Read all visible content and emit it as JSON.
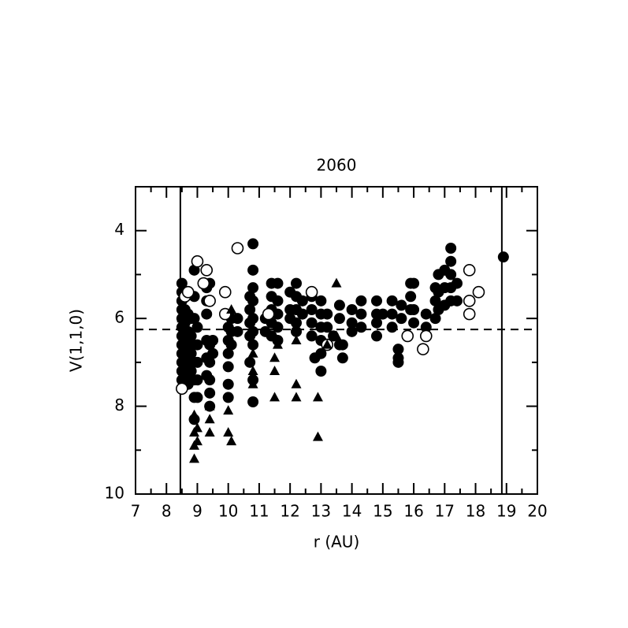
{
  "chart_data": {
    "type": "scatter",
    "title": "2060",
    "x_label": "r (AU)",
    "y_label": "V(1,1,0)",
    "xlim": [
      7,
      20
    ],
    "xticks": [
      7,
      8,
      9,
      10,
      11,
      12,
      13,
      14,
      15,
      16,
      17,
      18,
      19,
      20
    ],
    "xminor": [
      7.5,
      8.5,
      9.5,
      10.5,
      11.5,
      12.5,
      13.5,
      14.5,
      15.5,
      16.5,
      17.5,
      18.5,
      19.5
    ],
    "ylim": [
      10,
      3
    ],
    "yticks": [
      4,
      6,
      8,
      10
    ],
    "yminor": [
      3,
      5,
      7,
      9
    ],
    "vlines": [
      8.45,
      18.85
    ],
    "hline": 6.25,
    "series": [
      {
        "marker": "filled-circle",
        "color": "#000000",
        "x": [
          8.5,
          8.5,
          8.5,
          8.5,
          8.5,
          8.5,
          8.5,
          8.5,
          8.5,
          8.5,
          8.5,
          8.5,
          8.6,
          8.6,
          8.6,
          8.6,
          8.6,
          8.7,
          8.7,
          8.7,
          8.7,
          8.7,
          8.8,
          8.8,
          8.8,
          8.8,
          8.9,
          8.9,
          8.9,
          8.9,
          8.9,
          8.9,
          8.9,
          8.9,
          9.0,
          9.0,
          9.0,
          9.0,
          9.0,
          9.3,
          9.3,
          9.3,
          9.3,
          9.3,
          9.3,
          9.4,
          9.4,
          9.4,
          9.4,
          9.4,
          9.4,
          9.5,
          9.5,
          10.0,
          10.0,
          10.0,
          10.0,
          10.0,
          10.0,
          10.1,
          10.1,
          10.1,
          10.3,
          10.3,
          10.7,
          10.7,
          10.7,
          10.7,
          10.7,
          10.8,
          10.8,
          10.8,
          10.8,
          10.8,
          10.8,
          10.8,
          10.8,
          10.8,
          11.2,
          11.2,
          11.4,
          11.4,
          11.4,
          11.4,
          11.4,
          11.6,
          11.6,
          11.6,
          11.6,
          11.6,
          12.0,
          12.0,
          12.0,
          12.2,
          12.2,
          12.2,
          12.2,
          12.2,
          12.4,
          12.4,
          12.7,
          12.7,
          12.7,
          12.7,
          12.8,
          13.0,
          13.0,
          13.0,
          13.0,
          13.0,
          13.0,
          13.2,
          13.2,
          13.2,
          13.4,
          13.6,
          13.6,
          13.6,
          13.7,
          13.7,
          14.0,
          14.0,
          14.0,
          14.3,
          14.3,
          14.3,
          14.8,
          14.8,
          14.8,
          14.8,
          15.0,
          15.3,
          15.3,
          15.3,
          15.5,
          15.5,
          15.5,
          15.6,
          15.6,
          15.9,
          15.9,
          15.9,
          16.0,
          16.0,
          16.0,
          16.4,
          16.4,
          16.7,
          16.7,
          16.7,
          16.8,
          16.8,
          16.8,
          17.0,
          17.0,
          17.0,
          17.2,
          17.2,
          17.2,
          17.2,
          17.2,
          17.4,
          17.4,
          18.9
        ],
        "values": [
          5.2,
          5.4,
          5.6,
          5.8,
          6.0,
          6.2,
          6.4,
          6.6,
          6.8,
          7.0,
          7.2,
          7.4,
          5.8,
          6.1,
          6.5,
          6.9,
          7.3,
          5.9,
          6.3,
          6.7,
          7.1,
          7.5,
          6.0,
          6.4,
          6.8,
          7.2,
          4.9,
          5.5,
          6.0,
          6.6,
          7.0,
          7.4,
          7.8,
          8.3,
          6.2,
          6.6,
          7.0,
          7.4,
          7.8,
          5.3,
          5.6,
          5.9,
          6.5,
          6.9,
          7.3,
          5.2,
          6.6,
          7.0,
          7.4,
          7.7,
          8.0,
          6.5,
          6.8,
          6.2,
          6.5,
          6.8,
          7.1,
          7.5,
          7.8,
          6.0,
          6.3,
          6.6,
          6.0,
          6.3,
          5.5,
          5.8,
          6.1,
          6.4,
          7.0,
          4.3,
          4.9,
          5.3,
          5.6,
          6.0,
          6.3,
          6.6,
          7.4,
          7.9,
          6.0,
          6.3,
          5.2,
          5.5,
          5.8,
          6.1,
          6.4,
          5.2,
          5.6,
          5.9,
          6.2,
          6.5,
          5.4,
          5.8,
          6.0,
          5.2,
          5.5,
          5.8,
          6.1,
          6.3,
          5.6,
          5.9,
          5.5,
          5.8,
          6.1,
          6.4,
          6.9,
          5.6,
          5.9,
          6.2,
          6.5,
          6.8,
          7.2,
          5.9,
          6.2,
          6.6,
          6.4,
          5.7,
          6.0,
          6.6,
          6.9,
          6.6,
          5.8,
          6.1,
          6.3,
          5.6,
          5.9,
          6.2,
          5.6,
          5.9,
          6.1,
          6.4,
          5.9,
          5.6,
          5.9,
          6.2,
          6.7,
          6.9,
          7.0,
          5.7,
          6.0,
          5.2,
          5.5,
          5.8,
          5.2,
          5.8,
          6.1,
          5.9,
          6.2,
          5.3,
          5.6,
          6.0,
          5.0,
          5.4,
          5.8,
          4.9,
          5.3,
          5.7,
          4.4,
          4.7,
          5.0,
          5.3,
          5.6,
          5.2,
          5.6,
          4.6
        ]
      },
      {
        "marker": "open-circle",
        "color": "#000000",
        "x": [
          8.5,
          8.6,
          8.7,
          9.0,
          9.3,
          9.4,
          9.2,
          9.9,
          9.9,
          10.3,
          11.3,
          12.7,
          13.2,
          15.8,
          16.3,
          16.4,
          17.8,
          17.8,
          17.8,
          18.1
        ],
        "values": [
          7.6,
          5.5,
          5.4,
          4.7,
          4.9,
          5.6,
          5.2,
          5.4,
          5.9,
          4.4,
          5.9,
          5.4,
          6.6,
          6.4,
          6.7,
          6.4,
          4.9,
          5.6,
          5.9,
          5.4
        ]
      },
      {
        "marker": "triangle",
        "color": "#000000",
        "x": [
          8.5,
          8.9,
          8.9,
          8.9,
          8.9,
          9.0,
          9.0,
          9.4,
          9.4,
          9.4,
          10.0,
          10.0,
          10.1,
          10.8,
          10.8,
          10.8,
          11.5,
          11.5,
          11.5,
          11.6,
          12.2,
          12.2,
          12.2,
          12.9,
          12.9,
          13.5,
          13.5,
          13.2,
          10.1
        ],
        "values": [
          6.0,
          8.2,
          8.6,
          8.9,
          9.2,
          8.8,
          8.5,
          8.0,
          8.3,
          8.6,
          8.1,
          8.6,
          8.8,
          7.2,
          7.5,
          6.8,
          6.9,
          7.2,
          7.8,
          6.6,
          7.5,
          7.8,
          6.5,
          7.8,
          8.7,
          5.2,
          6.4,
          6.6,
          5.8
        ]
      }
    ]
  }
}
